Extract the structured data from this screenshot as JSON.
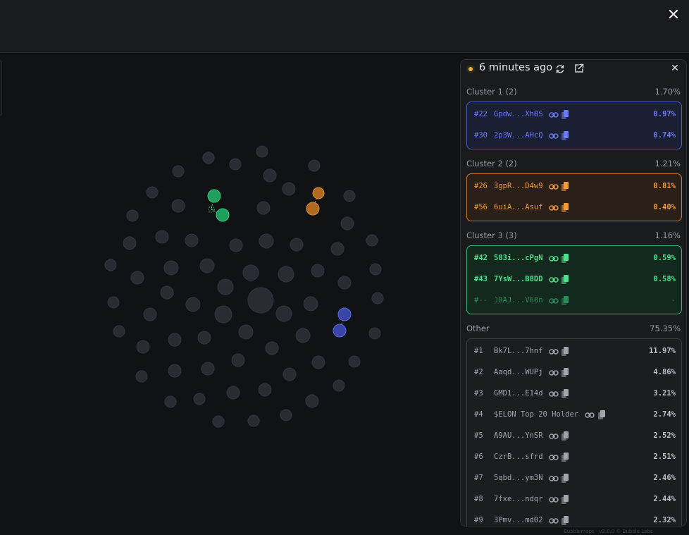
{
  "header": {
    "close_label": "✕"
  },
  "footer": {
    "credit": "Bubblemaps · v2.0.0 © Bubble Labs"
  },
  "panel": {
    "time_label": "6 minutes ago",
    "close_label": "✕",
    "status_color": "#f2b632",
    "icons": [
      "refresh-icon",
      "external-link-icon",
      "close-icon",
      "link-icon",
      "copy-icon"
    ]
  },
  "clusters": [
    {
      "label": "Cluster 1 (2)",
      "percent": "1.70%",
      "color": "#6b7cf0",
      "holders": [
        {
          "rank": "#22",
          "address": "Gpdw...XhBS",
          "percent": "0.97%"
        },
        {
          "rank": "#30",
          "address": "2p3W...AHcQ",
          "percent": "0.74%"
        }
      ]
    },
    {
      "label": "Cluster 2 (2)",
      "percent": "1.21%",
      "color": "#f09a3c",
      "holders": [
        {
          "rank": "#26",
          "address": "3gpR...D4w9",
          "percent": "0.81%"
        },
        {
          "rank": "#56",
          "address": "6uiA...Asuf",
          "percent": "0.40%"
        }
      ]
    },
    {
      "label": "Cluster 3 (3)",
      "percent": "1.16%",
      "color": "#4ee08d",
      "holders": [
        {
          "rank": "#42",
          "address": "583i...cPgN",
          "percent": "0.59%"
        },
        {
          "rank": "#43",
          "address": "7YsW...B8DD",
          "percent": "0.58%"
        },
        {
          "rank": "#--",
          "address": "J8AJ...V68n",
          "percent": "-"
        }
      ]
    }
  ],
  "other": {
    "label": "Other",
    "percent": "75.35%",
    "holders": [
      {
        "rank": "#1",
        "address": "Bk7L...7hnf",
        "percent": "11.97%"
      },
      {
        "rank": "#2",
        "address": "Aaqd...WUPj",
        "percent": "4.86%"
      },
      {
        "rank": "#3",
        "address": "GMD1...E14d",
        "percent": "3.21%"
      },
      {
        "rank": "#4",
        "address": "$ELON Top 20 Holder",
        "percent": "2.74%"
      },
      {
        "rank": "#5",
        "address": "A9AU...YnSR",
        "percent": "2.52%"
      },
      {
        "rank": "#6",
        "address": "CzrB...sfrd",
        "percent": "2.51%"
      },
      {
        "rank": "#7",
        "address": "5qbd...ym3N",
        "percent": "2.46%"
      },
      {
        "rank": "#8",
        "address": "7fxe...ndqr",
        "percent": "2.44%"
      },
      {
        "rank": "#9",
        "address": "3Pmv...md02",
        "percent": "2.32%"
      }
    ]
  }
}
